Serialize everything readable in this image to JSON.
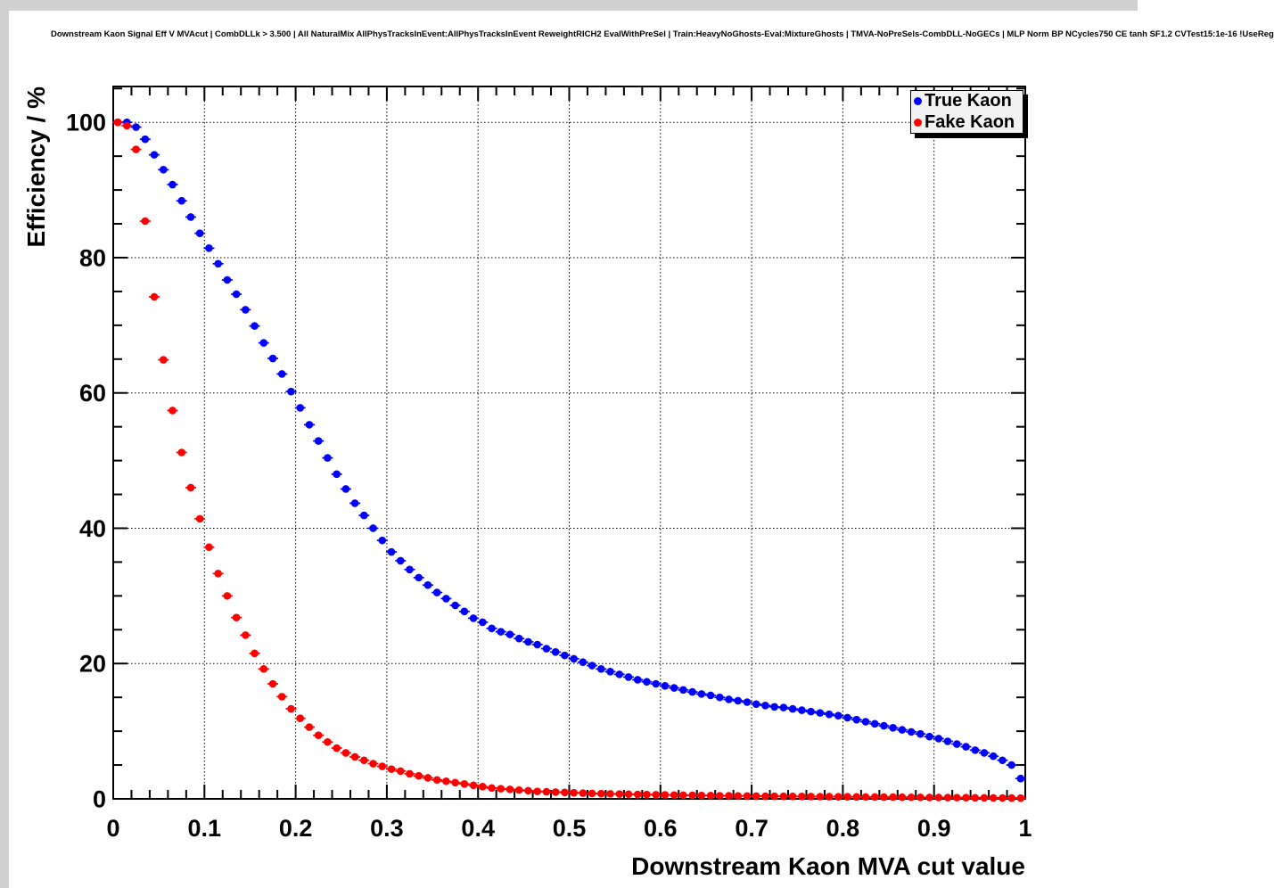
{
  "page": {
    "title": "Downstream Kaon Signal Eff V MVAcut | CombDLLk > 3.500 | All NaturalMix AllPhysTracksInEvent:AllPhysTracksInEvent ReweightRICH2 EvalWithPreSel | Train:HeavyNoGhosts-Eval:MixtureGhosts | TMVA-NoPreSels-CombDLL-NoGECs | MLP Norm BP NCycles750 CE tanh SF1.2 CVTest15:1e-16 !UseReg"
  },
  "chart_data": {
    "type": "scatter",
    "title": "Downstream Kaon Signal Eff V MVAcut | CombDLLk > 3.500 | All NaturalMix AllPhysTracksInEvent:AllPhysTracksInEvent ReweightRICH2 EvalWithPreSel | Train:HeavyNoGhosts-Eval:MixtureGhosts | TMVA-NoPreSels-CombDLL-NoGECs | MLP Norm BP NCycles750 CE tanh SF1.2 CVTest15:1e-16 !UseReg",
    "xlabel": "Downstream Kaon MVA cut value",
    "ylabel": "Efficiency / %",
    "xlim": [
      0,
      1
    ],
    "ylim": [
      0,
      105.3
    ],
    "x_ticks": [
      0,
      0.1,
      0.2,
      0.3,
      0.4,
      0.5,
      0.6,
      0.7,
      0.8,
      0.9,
      1
    ],
    "x_tick_labels": [
      "0",
      "0.1",
      "0.2",
      "0.3",
      "0.4",
      "0.5",
      "0.6",
      "0.7",
      "0.8",
      "0.9",
      "1"
    ],
    "y_ticks": [
      0,
      20,
      40,
      60,
      80,
      100
    ],
    "y_tick_labels": [
      "0",
      "20",
      "40",
      "60",
      "80",
      "100"
    ],
    "x_minor_step": 0.02,
    "y_minor_step": 5,
    "grid": "dotted-at-major-ticks",
    "marker": "full-circle",
    "x_error_half_width": 0.005,
    "x_start": 0.005,
    "x_step": 0.01,
    "legend": {
      "position": "top-right",
      "entries": [
        {
          "label": "True Kaon",
          "color": "#0000ff"
        },
        {
          "label": "Fake Kaon",
          "color": "#ff0000"
        }
      ]
    },
    "series": [
      {
        "name": "True Kaon",
        "color": "#0000ff",
        "values": [
          100.0,
          100.0,
          99.3,
          97.5,
          95.2,
          93.0,
          90.8,
          88.4,
          86.0,
          83.6,
          81.4,
          79.1,
          76.7,
          74.6,
          72.3,
          69.9,
          67.4,
          65.1,
          62.8,
          60.2,
          57.8,
          55.3,
          52.9,
          50.4,
          48.0,
          45.8,
          43.7,
          41.9,
          40.0,
          38.2,
          36.5,
          35.2,
          33.9,
          32.7,
          31.6,
          30.5,
          29.6,
          28.6,
          27.7,
          26.7,
          26.1,
          25.2,
          24.7,
          24.3,
          23.7,
          23.2,
          22.8,
          22.2,
          21.7,
          21.2,
          20.7,
          20.2,
          19.7,
          19.2,
          18.8,
          18.4,
          18.0,
          17.6,
          17.3,
          17.0,
          16.7,
          16.4,
          16.1,
          15.8,
          15.5,
          15.3,
          15.0,
          14.7,
          14.5,
          14.3,
          14.0,
          13.8,
          13.6,
          13.5,
          13.3,
          13.1,
          12.9,
          12.7,
          12.5,
          12.3,
          12.0,
          11.7,
          11.4,
          11.1,
          10.8,
          10.5,
          10.2,
          9.9,
          9.6,
          9.2,
          8.9,
          8.5,
          8.1,
          7.7,
          7.2,
          6.8,
          6.3,
          5.7,
          5.0,
          3.0
        ]
      },
      {
        "name": "Fake Kaon",
        "color": "#ff0000",
        "values": [
          100.0,
          99.5,
          96.0,
          85.4,
          74.2,
          64.9,
          57.4,
          51.2,
          46.0,
          41.4,
          37.2,
          33.3,
          30.0,
          26.8,
          24.2,
          21.5,
          19.2,
          17.0,
          15.1,
          13.3,
          11.9,
          10.6,
          9.4,
          8.4,
          7.5,
          6.8,
          6.2,
          5.7,
          5.2,
          4.8,
          4.4,
          4.1,
          3.7,
          3.4,
          3.1,
          2.8,
          2.6,
          2.4,
          2.2,
          2.0,
          1.8,
          1.6,
          1.5,
          1.4,
          1.3,
          1.2,
          1.1,
          1.05,
          1.0,
          0.95,
          0.9,
          0.85,
          0.8,
          0.77,
          0.74,
          0.71,
          0.68,
          0.65,
          0.63,
          0.6,
          0.58,
          0.56,
          0.54,
          0.52,
          0.5,
          0.48,
          0.46,
          0.45,
          0.43,
          0.42,
          0.4,
          0.39,
          0.38,
          0.37,
          0.36,
          0.35,
          0.34,
          0.33,
          0.32,
          0.31,
          0.3,
          0.29,
          0.28,
          0.27,
          0.26,
          0.25,
          0.24,
          0.23,
          0.22,
          0.21,
          0.2,
          0.19,
          0.18,
          0.17,
          0.16,
          0.15,
          0.14,
          0.13,
          0.12,
          0.11
        ]
      }
    ]
  }
}
